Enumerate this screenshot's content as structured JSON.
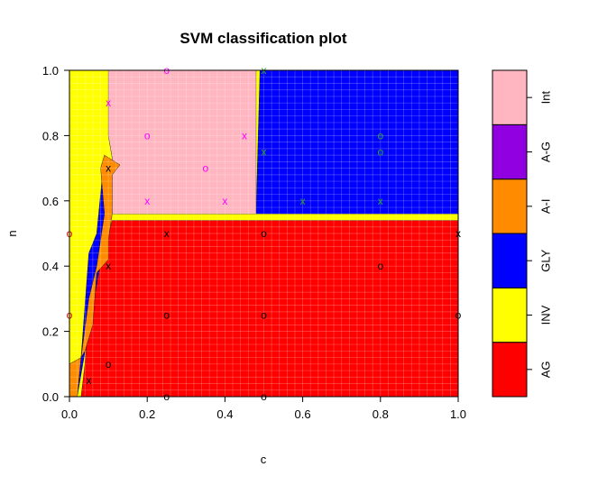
{
  "chart_data": {
    "type": "heatmap",
    "title": "SVM classification plot",
    "xlabel": "c",
    "ylabel": "n",
    "xlim": [
      0,
      1
    ],
    "ylim": [
      0,
      1
    ],
    "x_ticks": [
      "0.0",
      "0.2",
      "0.4",
      "0.6",
      "0.8",
      "1.0"
    ],
    "y_ticks": [
      "0.0",
      "0.2",
      "0.4",
      "0.6",
      "0.8",
      "1.0"
    ],
    "grid": true,
    "legend_position": "right",
    "classes": [
      {
        "name": "AG",
        "color": "#ff0000"
      },
      {
        "name": "INV",
        "color": "#ffff00"
      },
      {
        "name": "GLY",
        "color": "#0000ff"
      },
      {
        "name": "A-I",
        "color": "#ff8c00"
      },
      {
        "name": "A-G",
        "color": "#9000e0"
      },
      {
        "name": "Int",
        "color": "#ffb6c1"
      }
    ],
    "regions": [
      {
        "class": "AG",
        "polygon": [
          [
            0.11,
            0.54
          ],
          [
            1,
            0.54
          ],
          [
            1,
            0
          ],
          [
            0.03,
            0
          ],
          [
            0.04,
            0.1
          ],
          [
            0.05,
            0.28
          ],
          [
            0.08,
            0.4
          ],
          [
            0.09,
            0.46
          ]
        ]
      },
      {
        "class": "GLY",
        "polygon": [
          [
            0.48,
            0.56
          ],
          [
            1,
            0.56
          ],
          [
            1,
            1
          ],
          [
            0.49,
            1
          ]
        ]
      },
      {
        "class": "Int",
        "polygon": [
          [
            0.1,
            1
          ],
          [
            0.48,
            1
          ],
          [
            0.48,
            0.56
          ],
          [
            0.11,
            0.56
          ],
          [
            0.1,
            0.66
          ],
          [
            0.11,
            0.73
          ],
          [
            0.1,
            0.8
          ],
          [
            0.1,
            0.9
          ]
        ]
      },
      {
        "class": "GLY",
        "polygon": [
          [
            0.1,
            0.55
          ],
          [
            0.11,
            0.72
          ],
          [
            0.09,
            0.74
          ],
          [
            0.08,
            0.62
          ],
          [
            0.07,
            0.5
          ],
          [
            0.05,
            0.44
          ],
          [
            0.04,
            0.28
          ],
          [
            0.03,
            0.12
          ],
          [
            0.02,
            0
          ]
        ]
      },
      {
        "class": "A-I",
        "polygon": [
          [
            0.03,
            0.12
          ],
          [
            0.05,
            0.3
          ],
          [
            0.07,
            0.4
          ],
          [
            0.08,
            0.48
          ],
          [
            0.09,
            0.56
          ],
          [
            0.08,
            0.7
          ],
          [
            0.09,
            0.74
          ],
          [
            0.13,
            0.71
          ],
          [
            0.11,
            0.68
          ],
          [
            0.11,
            0.56
          ],
          [
            0.1,
            0.48
          ],
          [
            0.1,
            0.42
          ],
          [
            0.07,
            0.38
          ],
          [
            0.06,
            0.22
          ],
          [
            0.04,
            0.14
          ]
        ]
      },
      {
        "class": "A-I",
        "polygon": [
          [
            0,
            0
          ],
          [
            0.02,
            0
          ],
          [
            0.03,
            0.12
          ],
          [
            0,
            0.1
          ]
        ]
      }
    ],
    "points": [
      {
        "x": 0.25,
        "y": 1.0,
        "marker": "o",
        "class": "Int"
      },
      {
        "x": 0.1,
        "y": 0.9,
        "marker": "x",
        "class": "Int"
      },
      {
        "x": 0.2,
        "y": 0.8,
        "marker": "o",
        "class": "Int"
      },
      {
        "x": 0.45,
        "y": 0.8,
        "marker": "x",
        "class": "Int"
      },
      {
        "x": 0.35,
        "y": 0.7,
        "marker": "o",
        "class": "Int"
      },
      {
        "x": 0.2,
        "y": 0.6,
        "marker": "x",
        "class": "Int"
      },
      {
        "x": 0.4,
        "y": 0.6,
        "marker": "x",
        "class": "Int"
      },
      {
        "x": 0.5,
        "y": 1.0,
        "marker": "x",
        "class": "GLY-pt"
      },
      {
        "x": 0.8,
        "y": 0.8,
        "marker": "o",
        "class": "GLY-pt"
      },
      {
        "x": 0.5,
        "y": 0.75,
        "marker": "x",
        "class": "GLY-pt"
      },
      {
        "x": 0.8,
        "y": 0.75,
        "marker": "o",
        "class": "GLY-pt"
      },
      {
        "x": 0.6,
        "y": 0.6,
        "marker": "x",
        "class": "GLY-pt"
      },
      {
        "x": 0.8,
        "y": 0.6,
        "marker": "x",
        "class": "GLY-pt"
      },
      {
        "x": 0.1,
        "y": 0.7,
        "marker": "x",
        "class": "AG-pt"
      },
      {
        "x": 0.0,
        "y": 0.5,
        "marker": "o",
        "class": "INV-pt"
      },
      {
        "x": 0.25,
        "y": 0.5,
        "marker": "x",
        "class": "AG-pt"
      },
      {
        "x": 0.5,
        "y": 0.5,
        "marker": "o",
        "class": "AG-pt"
      },
      {
        "x": 1.0,
        "y": 0.5,
        "marker": "x",
        "class": "AG-pt"
      },
      {
        "x": 0.1,
        "y": 0.4,
        "marker": "x",
        "class": "AG-pt"
      },
      {
        "x": 0.8,
        "y": 0.4,
        "marker": "o",
        "class": "AG-pt"
      },
      {
        "x": 0.0,
        "y": 0.25,
        "marker": "o",
        "class": "INV-pt"
      },
      {
        "x": 0.25,
        "y": 0.25,
        "marker": "o",
        "class": "AG-pt"
      },
      {
        "x": 0.5,
        "y": 0.25,
        "marker": "o",
        "class": "AG-pt"
      },
      {
        "x": 1.0,
        "y": 0.25,
        "marker": "o",
        "class": "AG-pt"
      },
      {
        "x": 0.1,
        "y": 0.1,
        "marker": "o",
        "class": "AG-pt"
      },
      {
        "x": 0.05,
        "y": 0.05,
        "marker": "x",
        "class": "AG-pt"
      },
      {
        "x": 0.25,
        "y": 0.0,
        "marker": "o",
        "class": "AG-pt"
      },
      {
        "x": 0.5,
        "y": 0.0,
        "marker": "o",
        "class": "AG-pt"
      }
    ],
    "point_colors": {
      "Int": "#ff00ff",
      "GLY-pt": "#22aa22",
      "AG-pt": "#000000",
      "INV-pt": "#cc0000"
    }
  }
}
